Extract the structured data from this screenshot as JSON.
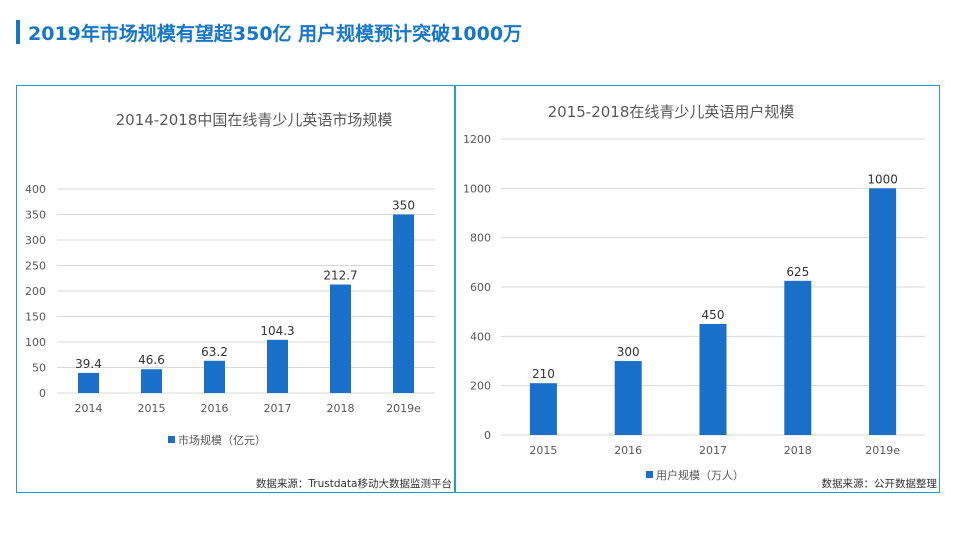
{
  "slide_title": "2019年市场规模有望超350亿 用户规模预计突破1000万",
  "colors": {
    "accent": "#1677c9",
    "bar": "#1a6fc9",
    "border": "#1e9fc4",
    "grid": "#d9d9d9",
    "text": "#595959"
  },
  "chart_data": [
    {
      "type": "bar",
      "title": "2014-2018中国在线青少儿英语市场规模",
      "categories": [
        "2014",
        "2015",
        "2016",
        "2017",
        "2018",
        "2019e"
      ],
      "series": [
        {
          "name": "市场规模（亿元）",
          "values": [
            39.4,
            46.6,
            63.2,
            104.3,
            212.7,
            350
          ]
        }
      ],
      "data_labels": [
        "39.4",
        "46.6",
        "63.2",
        "104.3",
        "212.7",
        "350"
      ],
      "ylim": [
        0,
        400
      ],
      "yticks": [
        0,
        50,
        100,
        150,
        200,
        250,
        300,
        350,
        400
      ],
      "grid": true,
      "legend": "bottom",
      "source": "数据来源：Trustdata移动大数据监测平台"
    },
    {
      "type": "bar",
      "title": "2015-2018在线青少儿英语用户规模",
      "categories": [
        "2015",
        "2016",
        "2017",
        "2018",
        "2019e"
      ],
      "series": [
        {
          "name": "用户规模（万人）",
          "values": [
            210,
            300,
            450,
            625,
            1000
          ]
        }
      ],
      "data_labels": [
        "210",
        "300",
        "450",
        "625",
        "1000"
      ],
      "ylim": [
        0,
        1200
      ],
      "yticks": [
        0,
        200,
        400,
        600,
        800,
        1000,
        1200
      ],
      "grid": true,
      "legend": "bottom",
      "source": "数据来源：公开数据整理"
    }
  ]
}
